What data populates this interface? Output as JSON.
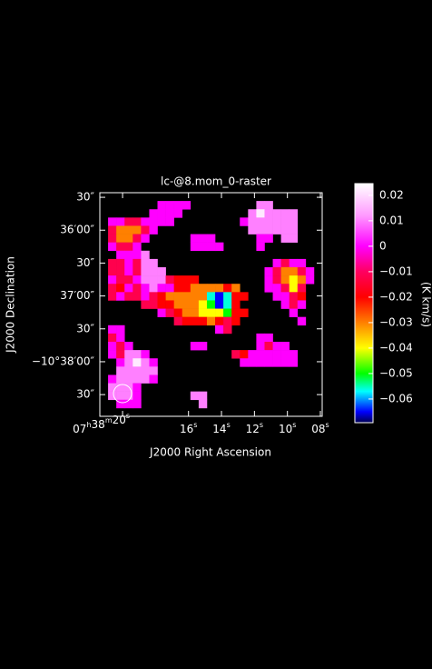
{
  "chart_data": {
    "type": "heatmap",
    "title": "lc-@8.mom_0-raster",
    "x_label": "J2000 Right Ascension",
    "y_label": "J2000 Declination",
    "xlim": [
      21.38,
      7.89
    ],
    "xticks": [
      {
        "value": 20,
        "label": "07h38m20s"
      },
      {
        "value": 16,
        "label": "16s"
      },
      {
        "value": 14,
        "label": "14s"
      },
      {
        "value": 12,
        "label": "12s"
      },
      {
        "value": 10,
        "label": "10s"
      },
      {
        "value": 8,
        "label": "08s"
      }
    ],
    "ylim": [
      38.83,
      35.43
    ],
    "yticks": [
      {
        "value": 35.5,
        "label": "30″"
      },
      {
        "value": 36,
        "label": "36′00″"
      },
      {
        "value": 36.5,
        "label": "30″"
      },
      {
        "value": 37,
        "label": "37′00″"
      },
      {
        "value": 37.5,
        "label": "30″"
      },
      {
        "value": 38,
        "label": "−10°38′00″"
      },
      {
        "value": 38.5,
        "label": "30″"
      }
    ],
    "colorbar": {
      "label": "(K km/s)",
      "lim": [
        -0.0693,
        0.0246
      ],
      "ticks": [
        0.02,
        0.01,
        0,
        {
          "value": -0.01,
          "label": "−0.01"
        },
        {
          "value": -0.02,
          "label": "−0.02"
        },
        {
          "value": -0.03,
          "label": "−0.03"
        },
        {
          "value": -0.04,
          "label": "−0.04"
        },
        {
          "value": -0.05,
          "label": "−0.05"
        },
        {
          "value": -0.06,
          "label": "−0.06"
        }
      ],
      "stops": [
        {
          "value": -0.0693,
          "color": "#000050"
        },
        {
          "value": -0.065,
          "color": "#0000ff"
        },
        {
          "value": -0.057,
          "color": "#00ffff"
        },
        {
          "value": -0.05,
          "color": "#00ff00"
        },
        {
          "value": -0.04,
          "color": "#ffff00"
        },
        {
          "value": -0.03,
          "color": "#ff8000"
        },
        {
          "value": -0.02,
          "color": "#ff0000"
        },
        {
          "value": -0.01,
          "color": "#ff0060"
        },
        {
          "value": 0,
          "color": "#ff00ff"
        },
        {
          "value": 0.012,
          "color": "#ff99ff"
        },
        {
          "value": 0.0246,
          "color": "#ffffff"
        }
      ]
    },
    "z": [
      [
        null,
        null,
        null,
        null,
        null,
        null,
        null,
        null,
        null,
        null,
        null,
        null,
        null,
        null,
        null,
        null,
        null,
        null,
        null,
        null,
        null,
        null,
        null,
        null,
        null,
        null,
        null
      ],
      [
        null,
        null,
        null,
        null,
        null,
        null,
        null,
        0,
        0,
        0,
        0,
        null,
        null,
        null,
        null,
        null,
        null,
        null,
        null,
        0.01,
        0.01,
        null,
        null,
        null,
        null,
        null,
        null
      ],
      [
        null,
        null,
        null,
        null,
        null,
        null,
        0,
        0,
        0,
        0,
        null,
        null,
        null,
        null,
        null,
        null,
        null,
        null,
        0.01,
        0.022,
        0.01,
        0.01,
        0.01,
        0.01,
        null,
        null,
        null
      ],
      [
        null,
        0,
        0,
        -0.012,
        -0.012,
        0,
        0,
        0,
        0,
        null,
        null,
        null,
        null,
        null,
        null,
        null,
        null,
        0,
        0.01,
        0.01,
        0.01,
        0.01,
        0.01,
        0.01,
        null,
        null,
        null
      ],
      [
        null,
        -0.012,
        -0.03,
        -0.03,
        -0.03,
        -0.012,
        0,
        null,
        null,
        null,
        null,
        null,
        null,
        null,
        null,
        null,
        null,
        null,
        0.01,
        0.01,
        0.01,
        0.01,
        0.01,
        0.01,
        null,
        null,
        null
      ],
      [
        null,
        -0.012,
        -0.03,
        -0.03,
        -0.012,
        0,
        null,
        null,
        null,
        null,
        null,
        0,
        0,
        0,
        null,
        null,
        null,
        null,
        null,
        0,
        0,
        null,
        0.01,
        0.01,
        null,
        null,
        null
      ],
      [
        null,
        0,
        -0.012,
        -0.012,
        0,
        null,
        null,
        null,
        null,
        null,
        null,
        0,
        0,
        0,
        0,
        null,
        null,
        null,
        null,
        0,
        null,
        null,
        null,
        null,
        null,
        null,
        null
      ],
      [
        null,
        null,
        0,
        0,
        0,
        0.01,
        null,
        null,
        null,
        null,
        null,
        null,
        null,
        null,
        null,
        null,
        null,
        null,
        null,
        null,
        null,
        null,
        null,
        null,
        null,
        null,
        null
      ],
      [
        null,
        -0.012,
        -0.012,
        0,
        -0.012,
        0.01,
        0.01,
        null,
        null,
        null,
        null,
        null,
        null,
        null,
        null,
        null,
        null,
        null,
        null,
        null,
        null,
        0,
        -0.012,
        0,
        0,
        null,
        null
      ],
      [
        null,
        -0.012,
        -0.012,
        0,
        -0.012,
        0.01,
        0.01,
        0.01,
        null,
        null,
        null,
        null,
        null,
        null,
        null,
        null,
        null,
        null,
        null,
        null,
        0,
        -0.012,
        -0.03,
        -0.03,
        -0.012,
        0,
        null
      ],
      [
        null,
        0,
        -0.012,
        -0.012,
        0,
        0.01,
        0.01,
        0.01,
        -0.012,
        -0.02,
        -0.02,
        -0.02,
        null,
        null,
        null,
        null,
        null,
        null,
        null,
        null,
        0,
        -0.012,
        -0.03,
        -0.04,
        -0.03,
        0,
        null
      ],
      [
        null,
        -0.012,
        -0.02,
        0,
        -0.012,
        0,
        0.01,
        0,
        0,
        -0.02,
        -0.02,
        -0.03,
        -0.03,
        -0.03,
        -0.03,
        -0.02,
        -0.03,
        null,
        null,
        null,
        0,
        0,
        -0.012,
        -0.04,
        -0.012,
        null,
        null
      ],
      [
        null,
        -0.012,
        0,
        -0.012,
        -0.012,
        0,
        -0.012,
        -0.02,
        -0.03,
        -0.03,
        -0.03,
        -0.03,
        -0.03,
        -0.056,
        -0.065,
        -0.056,
        -0.02,
        -0.02,
        null,
        null,
        null,
        0,
        0,
        -0.012,
        -0.02,
        null,
        null
      ],
      [
        null,
        null,
        null,
        null,
        null,
        -0.012,
        -0.012,
        -0.02,
        -0.02,
        -0.03,
        -0.03,
        -0.03,
        -0.04,
        -0.05,
        -0.065,
        -0.056,
        -0.02,
        null,
        null,
        null,
        null,
        null,
        0,
        -0.012,
        0,
        null,
        null
      ],
      [
        null,
        null,
        null,
        null,
        null,
        null,
        null,
        0,
        -0.012,
        -0.02,
        -0.03,
        -0.03,
        -0.04,
        -0.04,
        -0.04,
        -0.05,
        -0.02,
        -0.02,
        null,
        null,
        null,
        null,
        null,
        0,
        null,
        null,
        null
      ],
      [
        null,
        null,
        null,
        null,
        null,
        null,
        null,
        null,
        null,
        -0.012,
        -0.02,
        -0.02,
        -0.02,
        -0.03,
        -0.02,
        -0.012,
        -0.02,
        null,
        null,
        null,
        null,
        null,
        null,
        null,
        0,
        null,
        null
      ],
      [
        null,
        0,
        0,
        null,
        null,
        null,
        null,
        null,
        null,
        null,
        null,
        null,
        null,
        null,
        0,
        -0.012,
        null,
        null,
        null,
        null,
        null,
        null,
        null,
        null,
        null,
        null,
        null
      ],
      [
        null,
        -0.012,
        0,
        null,
        null,
        null,
        null,
        null,
        null,
        null,
        null,
        null,
        null,
        null,
        null,
        null,
        null,
        null,
        null,
        0,
        0,
        null,
        null,
        null,
        null,
        null,
        null
      ],
      [
        null,
        0,
        -0.012,
        0,
        null,
        null,
        null,
        null,
        null,
        null,
        null,
        0,
        0,
        null,
        null,
        null,
        null,
        null,
        null,
        0,
        -0.012,
        0,
        0,
        null,
        null,
        null,
        null
      ],
      [
        null,
        0,
        -0.012,
        0.01,
        0.01,
        0,
        null,
        null,
        null,
        null,
        null,
        null,
        null,
        null,
        null,
        null,
        -0.012,
        -0.02,
        0,
        0,
        0,
        0,
        0,
        0,
        null,
        null,
        null
      ],
      [
        null,
        null,
        0,
        0.01,
        0.022,
        0.01,
        0,
        null,
        null,
        null,
        null,
        null,
        null,
        null,
        null,
        null,
        null,
        0,
        0,
        0,
        0,
        0,
        0,
        0,
        null,
        null,
        null
      ],
      [
        null,
        null,
        0.01,
        0.01,
        0.01,
        0.01,
        0.01,
        null,
        null,
        null,
        null,
        null,
        null,
        null,
        null,
        null,
        null,
        null,
        null,
        null,
        null,
        null,
        null,
        null,
        null,
        null,
        null
      ],
      [
        null,
        0,
        0.01,
        0.01,
        0.01,
        0.01,
        0,
        null,
        null,
        null,
        null,
        null,
        null,
        null,
        null,
        null,
        null,
        null,
        null,
        null,
        null,
        null,
        null,
        null,
        null,
        null,
        null
      ],
      [
        null,
        0.01,
        0.01,
        0.01,
        0,
        null,
        null,
        null,
        null,
        null,
        null,
        null,
        null,
        null,
        null,
        null,
        null,
        null,
        null,
        null,
        null,
        null,
        null,
        null,
        null,
        null,
        null
      ],
      [
        null,
        0.01,
        0.01,
        0.01,
        0,
        null,
        null,
        null,
        null,
        null,
        null,
        0.01,
        0.01,
        null,
        null,
        null,
        null,
        null,
        null,
        null,
        null,
        null,
        null,
        null,
        null,
        null,
        null
      ],
      [
        null,
        null,
        0,
        0,
        0,
        null,
        null,
        null,
        null,
        null,
        null,
        null,
        0.01,
        null,
        null,
        null,
        null,
        null,
        null,
        null,
        null,
        null,
        null,
        null,
        null,
        null,
        null
      ],
      [
        null,
        null,
        null,
        null,
        null,
        null,
        null,
        null,
        null,
        null,
        null,
        null,
        null,
        null,
        null,
        null,
        null,
        null,
        null,
        null,
        null,
        null,
        null,
        null,
        null,
        null,
        null
      ]
    ]
  }
}
